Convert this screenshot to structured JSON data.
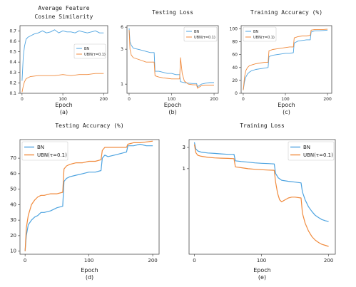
{
  "colors": {
    "bn": "#4da3e0",
    "ubn": "#f08a3c"
  },
  "chart_data": [
    {
      "id": "a",
      "type": "line",
      "title": [
        "Average Feature",
        "Cosine Similarity"
      ],
      "xlabel": "Epoch",
      "caption": "(a)",
      "xlim": [
        -5,
        210
      ],
      "ylim": [
        0.1,
        0.75
      ],
      "yscale": "linear",
      "xticks": [
        0,
        100,
        200
      ],
      "yticks": [
        0.1,
        0.2,
        0.3,
        0.4,
        0.5,
        0.6,
        0.7
      ],
      "legend_position": "center-right",
      "series": [
        {
          "name": "BN",
          "color": "#4da3e0",
          "x": [
            0,
            3,
            6,
            10,
            15,
            20,
            30,
            40,
            50,
            60,
            70,
            80,
            90,
            100,
            110,
            120,
            130,
            140,
            150,
            160,
            170,
            180,
            190,
            200
          ],
          "y": [
            0.22,
            0.45,
            0.55,
            0.62,
            0.64,
            0.65,
            0.67,
            0.68,
            0.7,
            0.68,
            0.69,
            0.71,
            0.68,
            0.7,
            0.69,
            0.69,
            0.68,
            0.7,
            0.69,
            0.68,
            0.69,
            0.7,
            0.68,
            0.68
          ]
        },
        {
          "name": "UBN(τ=0.1)",
          "color": "#f08a3c",
          "x": [
            0,
            3,
            6,
            10,
            20,
            40,
            60,
            80,
            100,
            120,
            140,
            160,
            180,
            200
          ],
          "y": [
            0.11,
            0.17,
            0.21,
            0.24,
            0.26,
            0.27,
            0.27,
            0.27,
            0.28,
            0.27,
            0.28,
            0.28,
            0.29,
            0.29
          ]
        }
      ]
    },
    {
      "id": "b",
      "type": "line",
      "title": [
        "Testing Loss"
      ],
      "xlabel": "Epoch",
      "caption": "(b)",
      "xlim": [
        -5,
        210
      ],
      "ylim": [
        0.75,
        6.3
      ],
      "yscale": "log",
      "xticks": [
        0,
        100,
        200
      ],
      "yticks": [
        1,
        3,
        6
      ],
      "legend_position": "upper-right",
      "series": [
        {
          "name": "BN",
          "color": "#4da3e0",
          "x": [
            0,
            2,
            5,
            10,
            20,
            30,
            40,
            50,
            59,
            61,
            70,
            80,
            90,
            100,
            110,
            119,
            121,
            130,
            140,
            150,
            159,
            161,
            170,
            180,
            190,
            200
          ],
          "y": [
            5.8,
            3.8,
            3.4,
            3.1,
            3.0,
            2.9,
            2.8,
            2.7,
            2.7,
            1.5,
            1.5,
            1.45,
            1.4,
            1.4,
            1.35,
            1.35,
            1.08,
            1.05,
            1.03,
            1.02,
            1.02,
            0.92,
            1.0,
            1.03,
            1.05,
            1.05
          ]
        },
        {
          "name": "UBN(τ=0.1)",
          "color": "#f08a3c",
          "x": [
            0,
            2,
            5,
            10,
            20,
            30,
            40,
            50,
            59,
            61,
            70,
            80,
            90,
            100,
            110,
            119,
            121,
            125,
            130,
            140,
            150,
            159,
            161,
            170,
            180,
            190,
            200
          ],
          "y": [
            5.5,
            3.0,
            2.5,
            2.3,
            2.2,
            2.1,
            2.0,
            2.0,
            2.0,
            1.3,
            1.25,
            1.22,
            1.2,
            1.18,
            1.18,
            1.18,
            2.3,
            1.4,
            1.1,
            1.0,
            0.98,
            0.98,
            0.88,
            0.95,
            0.97,
            0.97,
            0.97
          ]
        }
      ]
    },
    {
      "id": "c",
      "type": "line",
      "title": [
        "Training Accuracy (%)"
      ],
      "xlabel": "Epoch",
      "caption": "(c)",
      "xlim": [
        -5,
        210
      ],
      "ylim": [
        0,
        105
      ],
      "yscale": "linear",
      "xticks": [
        0,
        100,
        200
      ],
      "yticks": [
        0,
        20,
        40,
        60,
        80,
        100
      ],
      "legend_position": "upper-left",
      "series": [
        {
          "name": "BN",
          "color": "#4da3e0",
          "x": [
            0,
            3,
            6,
            10,
            15,
            20,
            30,
            40,
            50,
            59,
            61,
            70,
            80,
            90,
            100,
            110,
            119,
            121,
            130,
            140,
            150,
            159,
            161,
            170,
            180,
            190,
            200
          ],
          "y": [
            5,
            18,
            25,
            30,
            33,
            35,
            37,
            38,
            39,
            40,
            57,
            59,
            60,
            61,
            62,
            62,
            63,
            78,
            81,
            82,
            83,
            83,
            95,
            97,
            97,
            97.5,
            98
          ]
        },
        {
          "name": "UBN(τ=0.1)",
          "color": "#f08a3c",
          "x": [
            0,
            3,
            6,
            10,
            15,
            20,
            30,
            40,
            50,
            59,
            61,
            70,
            80,
            90,
            100,
            110,
            119,
            121,
            130,
            140,
            150,
            159,
            161,
            170,
            180,
            190,
            200
          ],
          "y": [
            5,
            25,
            35,
            40,
            43,
            44,
            46,
            47,
            48,
            48,
            66,
            68,
            69,
            70,
            71,
            72,
            72,
            86,
            88,
            89,
            89,
            90,
            98,
            99,
            99,
            99,
            99.5
          ]
        }
      ]
    },
    {
      "id": "d",
      "type": "line",
      "title": [
        "Testing Accuracy (%)"
      ],
      "xlabel": "Epoch",
      "caption": "(d)",
      "xlim": [
        -8,
        210
      ],
      "ylim": [
        8,
        82
      ],
      "yscale": "linear",
      "xticks": [
        0,
        100,
        200
      ],
      "yticks": [
        10,
        20,
        30,
        40,
        50,
        60,
        70
      ],
      "legend_position": "upper-left",
      "series": [
        {
          "name": "BN",
          "color": "#4da3e0",
          "x": [
            0,
            2,
            5,
            10,
            15,
            20,
            25,
            30,
            40,
            50,
            59,
            61,
            65,
            70,
            80,
            90,
            100,
            110,
            119,
            121,
            125,
            130,
            140,
            150,
            159,
            161,
            170,
            180,
            190,
            200
          ],
          "y": [
            10,
            20,
            27,
            30,
            32,
            33,
            35,
            35,
            36,
            38,
            39,
            55,
            57,
            58,
            59,
            60,
            61,
            61,
            62,
            70,
            72,
            71,
            72,
            73,
            74,
            78,
            78,
            79,
            78,
            78
          ]
        },
        {
          "name": "UBN(τ=0.1)",
          "color": "#f08a3c",
          "x": [
            0,
            2,
            5,
            10,
            15,
            20,
            25,
            30,
            40,
            50,
            59,
            61,
            65,
            70,
            80,
            90,
            100,
            110,
            119,
            121,
            125,
            130,
            140,
            150,
            159,
            161,
            170,
            180,
            190,
            200
          ],
          "y": [
            10,
            25,
            33,
            40,
            43,
            45,
            46,
            46,
            47,
            47,
            48,
            63,
            65,
            66,
            67,
            67,
            68,
            68,
            69,
            75,
            77,
            77,
            77,
            77,
            77,
            79,
            80,
            80,
            80.5,
            81
          ]
        }
      ]
    },
    {
      "id": "e",
      "type": "line",
      "title": [
        "Training Loss"
      ],
      "xlabel": "Epoch",
      "caption": "(e)",
      "xlim": [
        -8,
        210
      ],
      "ylim": [
        0.012,
        4.5
      ],
      "yscale": "log",
      "xticks": [
        0,
        100,
        200
      ],
      "yticks": [
        1,
        3
      ],
      "legend_position": "upper-right",
      "series": [
        {
          "name": "BN",
          "color": "#4da3e0",
          "x": [
            0,
            2,
            5,
            10,
            20,
            30,
            40,
            50,
            59,
            61,
            70,
            80,
            90,
            100,
            110,
            119,
            121,
            125,
            130,
            140,
            150,
            159,
            161,
            165,
            170,
            175,
            180,
            185,
            190,
            195,
            200
          ],
          "y": [
            3.9,
            2.8,
            2.5,
            2.35,
            2.25,
            2.2,
            2.15,
            2.1,
            2.1,
            1.5,
            1.45,
            1.4,
            1.35,
            1.32,
            1.3,
            1.28,
            0.78,
            0.62,
            0.55,
            0.52,
            0.5,
            0.48,
            0.3,
            0.2,
            0.14,
            0.11,
            0.09,
            0.08,
            0.072,
            0.068,
            0.065
          ]
        },
        {
          "name": "UBN(τ=0.1)",
          "color": "#f08a3c",
          "x": [
            0,
            2,
            5,
            10,
            20,
            30,
            40,
            50,
            59,
            61,
            70,
            80,
            90,
            100,
            110,
            119,
            121,
            124,
            127,
            130,
            135,
            140,
            145,
            150,
            159,
            161,
            165,
            170,
            175,
            180,
            185,
            190,
            195,
            200
          ],
          "y": [
            3.5,
            2.3,
            2.0,
            1.9,
            1.8,
            1.75,
            1.72,
            1.7,
            1.68,
            1.1,
            1.05,
            1.0,
            0.97,
            0.95,
            0.93,
            0.92,
            0.5,
            0.28,
            0.2,
            0.18,
            0.2,
            0.22,
            0.23,
            0.23,
            0.22,
            0.1,
            0.06,
            0.04,
            0.03,
            0.025,
            0.022,
            0.02,
            0.019,
            0.018
          ]
        }
      ]
    }
  ]
}
